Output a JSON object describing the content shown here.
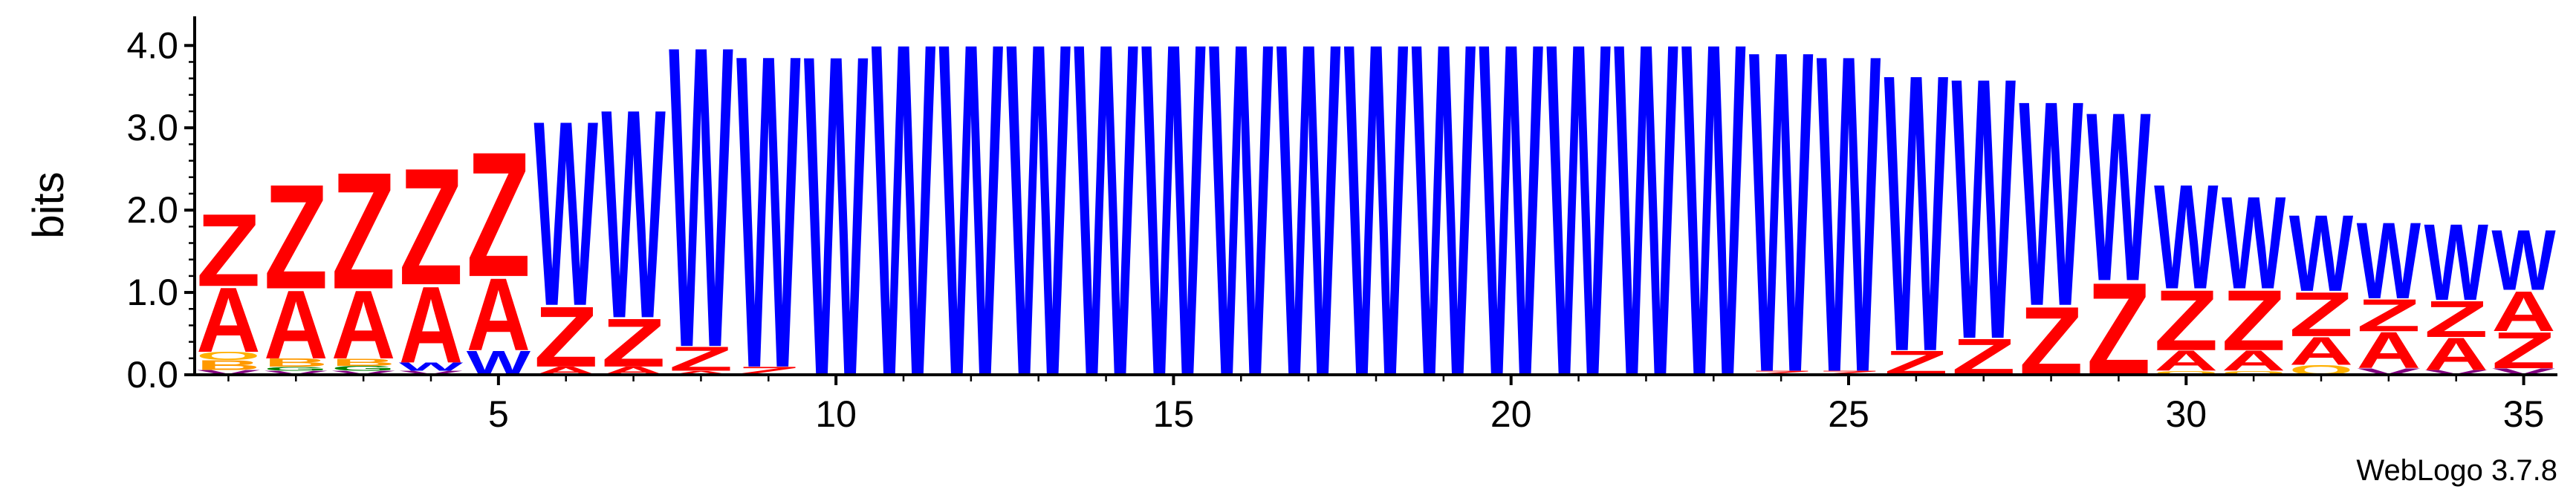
{
  "chart_data": {
    "type": "sequence-logo",
    "ylabel": "bits",
    "ylim": [
      0,
      4.3
    ],
    "yticks": [
      "0.0",
      "1.0",
      "2.0",
      "3.0",
      "4.0"
    ],
    "xticks": [
      5,
      10,
      15,
      20,
      25,
      30,
      35
    ],
    "xlim": [
      0.5,
      35.5
    ],
    "footer": "WebLogo 3.7.8",
    "colors": {
      "W": "#0000ff",
      "Z": "#ff0000",
      "A": "#ff0000",
      "B": "#ff9900",
      "V": "#800080",
      "G": "#008000",
      "O": "#ffb000",
      "axis": "#000000"
    },
    "positions": [
      {
        "pos": 1,
        "stack": [
          {
            "l": "V",
            "v": 0.06
          },
          {
            "l": "B",
            "v": 0.12
          },
          {
            "l": "O",
            "v": 0.1
          },
          {
            "l": "A",
            "v": 0.8
          },
          {
            "l": "Z",
            "v": 0.9
          }
        ]
      },
      {
        "pos": 2,
        "stack": [
          {
            "l": "V",
            "v": 0.05
          },
          {
            "l": "G",
            "v": 0.05
          },
          {
            "l": "B",
            "v": 0.1
          },
          {
            "l": "A",
            "v": 0.85
          },
          {
            "l": "Z",
            "v": 1.3
          }
        ]
      },
      {
        "pos": 3,
        "stack": [
          {
            "l": "V",
            "v": 0.05
          },
          {
            "l": "G",
            "v": 0.06
          },
          {
            "l": "B",
            "v": 0.09
          },
          {
            "l": "A",
            "v": 0.85
          },
          {
            "l": "Z",
            "v": 1.45
          }
        ]
      },
      {
        "pos": 4,
        "stack": [
          {
            "l": "V",
            "v": 0.05
          },
          {
            "l": "W",
            "v": 0.1
          },
          {
            "l": "A",
            "v": 0.95
          },
          {
            "l": "Z",
            "v": 1.45
          }
        ]
      },
      {
        "pos": 5,
        "stack": [
          {
            "l": "W",
            "v": 0.3
          },
          {
            "l": "A",
            "v": 0.9
          },
          {
            "l": "Z",
            "v": 1.55
          }
        ]
      },
      {
        "pos": 6,
        "stack": [
          {
            "l": "A",
            "v": 0.1
          },
          {
            "l": "Z",
            "v": 0.75
          },
          {
            "l": "W",
            "v": 2.3
          }
        ]
      },
      {
        "pos": 7,
        "stack": [
          {
            "l": "A",
            "v": 0.1
          },
          {
            "l": "Z",
            "v": 0.6
          },
          {
            "l": "W",
            "v": 2.6
          }
        ]
      },
      {
        "pos": 8,
        "stack": [
          {
            "l": "A",
            "v": 0.05
          },
          {
            "l": "Z",
            "v": 0.3
          },
          {
            "l": "W",
            "v": 3.75
          }
        ]
      },
      {
        "pos": 9,
        "stack": [
          {
            "l": "Z",
            "v": 0.1
          },
          {
            "l": "W",
            "v": 3.9
          }
        ]
      },
      {
        "pos": 10,
        "stack": [
          {
            "l": "W",
            "v": 4.0
          }
        ]
      },
      {
        "pos": 11,
        "stack": [
          {
            "l": "W",
            "v": 4.15
          }
        ]
      },
      {
        "pos": 12,
        "stack": [
          {
            "l": "W",
            "v": 4.15
          }
        ]
      },
      {
        "pos": 13,
        "stack": [
          {
            "l": "W",
            "v": 4.15
          }
        ]
      },
      {
        "pos": 14,
        "stack": [
          {
            "l": "W",
            "v": 4.15
          }
        ]
      },
      {
        "pos": 15,
        "stack": [
          {
            "l": "W",
            "v": 4.15
          }
        ]
      },
      {
        "pos": 16,
        "stack": [
          {
            "l": "W",
            "v": 4.15
          }
        ]
      },
      {
        "pos": 17,
        "stack": [
          {
            "l": "W",
            "v": 4.15
          }
        ]
      },
      {
        "pos": 18,
        "stack": [
          {
            "l": "W",
            "v": 4.15
          }
        ]
      },
      {
        "pos": 19,
        "stack": [
          {
            "l": "W",
            "v": 4.15
          }
        ]
      },
      {
        "pos": 20,
        "stack": [
          {
            "l": "W",
            "v": 4.15
          }
        ]
      },
      {
        "pos": 21,
        "stack": [
          {
            "l": "W",
            "v": 4.15
          }
        ]
      },
      {
        "pos": 22,
        "stack": [
          {
            "l": "W",
            "v": 4.15
          }
        ]
      },
      {
        "pos": 23,
        "stack": [
          {
            "l": "W",
            "v": 4.15
          }
        ]
      },
      {
        "pos": 24,
        "stack": [
          {
            "l": "Z",
            "v": 0.05
          },
          {
            "l": "W",
            "v": 4.0
          }
        ]
      },
      {
        "pos": 25,
        "stack": [
          {
            "l": "Z",
            "v": 0.05
          },
          {
            "l": "W",
            "v": 3.95
          }
        ]
      },
      {
        "pos": 26,
        "stack": [
          {
            "l": "Z",
            "v": 0.3
          },
          {
            "l": "W",
            "v": 3.45
          }
        ]
      },
      {
        "pos": 27,
        "stack": [
          {
            "l": "Z",
            "v": 0.45
          },
          {
            "l": "W",
            "v": 3.25
          }
        ]
      },
      {
        "pos": 28,
        "stack": [
          {
            "l": "Z",
            "v": 0.85
          },
          {
            "l": "W",
            "v": 2.55
          }
        ]
      },
      {
        "pos": 29,
        "stack": [
          {
            "l": "Z",
            "v": 1.15
          },
          {
            "l": "W",
            "v": 2.1
          }
        ]
      },
      {
        "pos": 30,
        "stack": [
          {
            "l": "O",
            "v": 0.05
          },
          {
            "l": "A",
            "v": 0.25
          },
          {
            "l": "Z",
            "v": 0.75
          },
          {
            "l": "W",
            "v": 1.3
          }
        ]
      },
      {
        "pos": 31,
        "stack": [
          {
            "l": "O",
            "v": 0.05
          },
          {
            "l": "A",
            "v": 0.25
          },
          {
            "l": "Z",
            "v": 0.75
          },
          {
            "l": "W",
            "v": 1.15
          }
        ]
      },
      {
        "pos": 32,
        "stack": [
          {
            "l": "O",
            "v": 0.12
          },
          {
            "l": "A",
            "v": 0.35
          },
          {
            "l": "Z",
            "v": 0.55
          },
          {
            "l": "W",
            "v": 0.95
          }
        ]
      },
      {
        "pos": 33,
        "stack": [
          {
            "l": "V",
            "v": 0.08
          },
          {
            "l": "A",
            "v": 0.45
          },
          {
            "l": "Z",
            "v": 0.4
          },
          {
            "l": "W",
            "v": 0.95
          }
        ]
      },
      {
        "pos": 34,
        "stack": [
          {
            "l": "V",
            "v": 0.06
          },
          {
            "l": "A",
            "v": 0.4
          },
          {
            "l": "Z",
            "v": 0.45
          },
          {
            "l": "W",
            "v": 0.95
          }
        ]
      },
      {
        "pos": 35,
        "stack": [
          {
            "l": "V",
            "v": 0.08
          },
          {
            "l": "Z",
            "v": 0.45
          },
          {
            "l": "A",
            "v": 0.5
          },
          {
            "l": "W",
            "v": 0.75
          }
        ]
      }
    ]
  }
}
